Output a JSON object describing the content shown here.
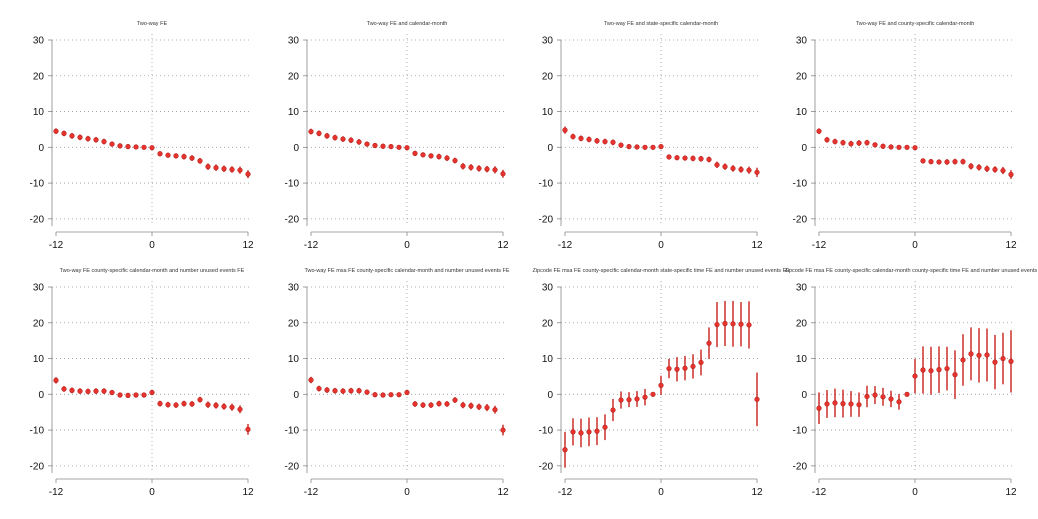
{
  "colors": {
    "marker": "#e8322d",
    "marker_edge": "#b0201c",
    "ci": "#c8201a",
    "grid": "#999999",
    "axis": "#888888"
  },
  "chart_data": [
    {
      "type": "scatter",
      "title": "Two-way FE",
      "x": [
        -12,
        -11,
        -10,
        -9,
        -8,
        -7,
        -6,
        -5,
        -4,
        -3,
        -2,
        -1,
        0,
        1,
        2,
        3,
        4,
        5,
        6,
        7,
        8,
        9,
        10,
        11,
        12
      ],
      "y": [
        4.5,
        3.9,
        3.2,
        2.8,
        2.4,
        2.1,
        1.6,
        0.9,
        0.4,
        0.2,
        0.1,
        0.0,
        -0.1,
        -1.8,
        -2.2,
        -2.4,
        -2.6,
        -3.0,
        -3.8,
        -5.4,
        -5.7,
        -6.0,
        -6.2,
        -6.4,
        -7.5
      ],
      "ci_low": [
        3.7,
        3.1,
        2.4,
        2.0,
        1.6,
        1.3,
        0.8,
        0.2,
        -0.3,
        -0.5,
        -0.5,
        -0.4,
        -0.5,
        -2.5,
        -2.9,
        -3.1,
        -3.4,
        -3.8,
        -4.6,
        -6.3,
        -6.6,
        -6.9,
        -7.1,
        -7.4,
        -8.6
      ],
      "ci_high": [
        5.3,
        4.7,
        4.0,
        3.6,
        3.2,
        2.9,
        2.4,
        1.6,
        1.1,
        0.9,
        0.7,
        0.4,
        0.3,
        -1.1,
        -1.5,
        -1.7,
        -1.8,
        -2.2,
        -3.0,
        -4.5,
        -4.8,
        -5.1,
        -5.3,
        -5.4,
        -6.4
      ],
      "xticks": [
        -12,
        0,
        12
      ],
      "yticks": [
        -20,
        -10,
        0,
        10,
        20,
        30
      ],
      "xlim": [
        -12.5,
        12.5
      ],
      "ylim": [
        -22,
        30
      ],
      "grid": "horizontal dotted",
      "legend": "none"
    },
    {
      "type": "scatter",
      "title": "Two-way FE and calendar-month",
      "x": [
        -12,
        -11,
        -10,
        -9,
        -8,
        -7,
        -6,
        -5,
        -4,
        -3,
        -2,
        -1,
        0,
        1,
        2,
        3,
        4,
        5,
        6,
        7,
        8,
        9,
        10,
        11,
        12
      ],
      "y": [
        4.4,
        3.9,
        3.2,
        2.7,
        2.3,
        2.0,
        1.5,
        0.9,
        0.5,
        0.3,
        0.2,
        0.0,
        -0.1,
        -1.7,
        -2.1,
        -2.4,
        -2.6,
        -3.0,
        -3.7,
        -5.3,
        -5.6,
        -5.9,
        -6.1,
        -6.3,
        -7.4
      ],
      "ci_low": [
        3.6,
        3.1,
        2.4,
        1.9,
        1.5,
        1.2,
        0.7,
        0.2,
        -0.2,
        -0.4,
        -0.4,
        -0.4,
        -0.5,
        -2.4,
        -2.8,
        -3.1,
        -3.4,
        -3.8,
        -4.5,
        -6.2,
        -6.5,
        -6.8,
        -7.0,
        -7.3,
        -8.5
      ],
      "ci_high": [
        5.2,
        4.7,
        4.0,
        3.5,
        3.1,
        2.8,
        2.3,
        1.6,
        1.2,
        1.0,
        0.8,
        0.4,
        0.3,
        -1.0,
        -1.4,
        -1.7,
        -1.8,
        -2.2,
        -2.9,
        -4.4,
        -4.7,
        -5.0,
        -5.2,
        -5.3,
        -6.3
      ],
      "xticks": [
        -12,
        0,
        12
      ],
      "yticks": [
        -20,
        -10,
        0,
        10,
        20,
        30
      ],
      "xlim": [
        -12.5,
        12.5
      ],
      "ylim": [
        -22,
        30
      ],
      "grid": "horizontal dotted",
      "legend": "none"
    },
    {
      "type": "scatter",
      "title": "Two-way FE and state-specific calendar-month",
      "x": [
        -12,
        -11,
        -10,
        -9,
        -8,
        -7,
        -6,
        -5,
        -4,
        -3,
        -2,
        -1,
        0,
        1,
        2,
        3,
        4,
        5,
        6,
        7,
        8,
        9,
        10,
        11,
        12
      ],
      "y": [
        4.8,
        3.0,
        2.5,
        2.2,
        1.8,
        1.6,
        1.4,
        0.6,
        0.2,
        0.1,
        0.0,
        0.0,
        0.2,
        -2.7,
        -2.9,
        -3.0,
        -3.1,
        -3.2,
        -3.4,
        -4.9,
        -5.4,
        -5.9,
        -6.2,
        -6.4,
        -7.0
      ],
      "ci_low": [
        3.8,
        2.2,
        1.7,
        1.4,
        1.0,
        0.8,
        0.6,
        -0.1,
        -0.5,
        -0.6,
        -0.6,
        -0.4,
        -0.2,
        -3.4,
        -3.6,
        -3.7,
        -3.9,
        -4.0,
        -4.2,
        -5.8,
        -6.3,
        -6.8,
        -7.1,
        -7.4,
        -8.3
      ],
      "ci_high": [
        5.8,
        3.8,
        3.3,
        3.0,
        2.6,
        2.4,
        2.2,
        1.3,
        0.9,
        0.8,
        0.6,
        0.4,
        0.6,
        -2.0,
        -2.2,
        -2.3,
        -2.3,
        -2.4,
        -2.6,
        -4.0,
        -4.5,
        -5.0,
        -5.3,
        -5.4,
        -5.7
      ],
      "xticks": [
        -12,
        0,
        12
      ],
      "yticks": [
        -20,
        -10,
        0,
        10,
        20,
        30
      ],
      "xlim": [
        -12.5,
        12.5
      ],
      "ylim": [
        -22,
        30
      ],
      "grid": "horizontal dotted",
      "legend": "none"
    },
    {
      "type": "scatter",
      "title": "Two-way FE and county-specific calendar-month",
      "x": [
        -12,
        -11,
        -10,
        -9,
        -8,
        -7,
        -6,
        -5,
        -4,
        -3,
        -2,
        -1,
        0,
        1,
        2,
        3,
        4,
        5,
        6,
        7,
        8,
        9,
        10,
        11,
        12
      ],
      "y": [
        4.5,
        2.1,
        1.6,
        1.3,
        1.0,
        1.2,
        1.3,
        0.7,
        0.3,
        0.1,
        0.0,
        0.0,
        -0.1,
        -3.8,
        -4.0,
        -4.1,
        -4.1,
        -4.0,
        -4.0,
        -5.3,
        -5.6,
        -6.0,
        -6.2,
        -6.5,
        -7.6
      ],
      "ci_low": [
        3.7,
        1.3,
        0.8,
        0.5,
        0.2,
        0.4,
        0.5,
        0.0,
        -0.4,
        -0.6,
        -0.6,
        -0.4,
        -0.5,
        -4.5,
        -4.7,
        -4.8,
        -4.9,
        -4.8,
        -4.8,
        -6.2,
        -6.5,
        -6.9,
        -7.1,
        -7.5,
        -8.8
      ],
      "ci_high": [
        5.3,
        2.9,
        2.4,
        2.1,
        1.8,
        2.0,
        2.1,
        1.4,
        1.0,
        0.8,
        0.6,
        0.4,
        0.3,
        -3.1,
        -3.3,
        -3.4,
        -3.3,
        -3.2,
        -3.2,
        -4.4,
        -4.7,
        -5.1,
        -5.3,
        -5.5,
        -6.4
      ],
      "xticks": [
        -12,
        0,
        12
      ],
      "yticks": [
        -20,
        -10,
        0,
        10,
        20,
        30
      ],
      "xlim": [
        -12.5,
        12.5
      ],
      "ylim": [
        -22,
        30
      ],
      "grid": "horizontal dotted",
      "legend": "none"
    },
    {
      "type": "scatter",
      "title": "Two-way FE county-specific calendar-month and number unused events FE",
      "x": [
        -12,
        -11,
        -10,
        -9,
        -8,
        -7,
        -6,
        -5,
        -4,
        -3,
        -2,
        -1,
        0,
        1,
        2,
        3,
        4,
        5,
        6,
        7,
        8,
        9,
        10,
        11,
        12
      ],
      "y": [
        3.9,
        1.5,
        1.1,
        0.9,
        0.8,
        0.9,
        0.9,
        0.5,
        -0.2,
        -0.3,
        -0.2,
        -0.2,
        0.5,
        -2.6,
        -2.9,
        -3.0,
        -2.6,
        -2.7,
        -1.5,
        -2.9,
        -3.1,
        -3.4,
        -3.6,
        -4.2,
        -9.8
      ],
      "ci_low": [
        3.0,
        0.7,
        0.3,
        0.1,
        0.0,
        0.1,
        0.1,
        -0.2,
        -0.9,
        -1.0,
        -0.8,
        -0.7,
        -0.1,
        -3.4,
        -3.7,
        -3.8,
        -3.4,
        -3.5,
        -2.3,
        -3.8,
        -4.0,
        -4.3,
        -4.6,
        -5.3,
        -11.3
      ],
      "ci_high": [
        4.8,
        2.3,
        1.9,
        1.7,
        1.6,
        1.7,
        1.7,
        1.2,
        0.5,
        0.4,
        0.4,
        0.3,
        1.1,
        -1.8,
        -2.1,
        -2.2,
        -1.8,
        -1.9,
        -0.7,
        -2.0,
        -2.2,
        -2.5,
        -2.6,
        -3.1,
        -8.3
      ],
      "xticks": [
        -12,
        0,
        12
      ],
      "yticks": [
        -20,
        -10,
        0,
        10,
        20,
        30
      ],
      "xlim": [
        -12.5,
        12.5
      ],
      "ylim": [
        -22,
        30
      ],
      "grid": "horizontal dotted",
      "legend": "none"
    },
    {
      "type": "scatter",
      "title": "Two-way FE msa FE county-specific calendar-month and number unused events FE",
      "x": [
        -12,
        -11,
        -10,
        -9,
        -8,
        -7,
        -6,
        -5,
        -4,
        -3,
        -2,
        -1,
        0,
        1,
        2,
        3,
        4,
        5,
        6,
        7,
        8,
        9,
        10,
        11,
        12
      ],
      "y": [
        4.0,
        1.6,
        1.2,
        1.0,
        0.9,
        1.0,
        1.0,
        0.6,
        -0.1,
        -0.2,
        -0.1,
        -0.1,
        0.5,
        -2.7,
        -3.0,
        -3.0,
        -2.6,
        -2.7,
        -1.6,
        -3.0,
        -3.2,
        -3.5,
        -3.7,
        -4.3,
        -10.0
      ],
      "ci_low": [
        3.1,
        0.8,
        0.4,
        0.2,
        0.1,
        0.2,
        0.2,
        -0.1,
        -0.8,
        -0.9,
        -0.7,
        -0.6,
        -0.1,
        -3.5,
        -3.8,
        -3.8,
        -3.4,
        -3.5,
        -2.4,
        -3.9,
        -4.1,
        -4.4,
        -4.7,
        -5.4,
        -11.5
      ],
      "ci_high": [
        4.9,
        2.4,
        2.0,
        1.8,
        1.7,
        1.8,
        1.8,
        1.3,
        0.6,
        0.5,
        0.5,
        0.4,
        1.1,
        -1.9,
        -2.2,
        -2.2,
        -1.8,
        -1.9,
        -0.8,
        -2.1,
        -2.3,
        -2.6,
        -2.7,
        -3.2,
        -8.5
      ],
      "xticks": [
        -12,
        0,
        12
      ],
      "yticks": [
        -20,
        -10,
        0,
        10,
        20,
        30
      ],
      "xlim": [
        -12.5,
        12.5
      ],
      "ylim": [
        -22,
        30
      ],
      "grid": "horizontal dotted",
      "legend": "none"
    },
    {
      "type": "scatter",
      "title": "Zipcode FE msa FE county-specific calendar-month state-specific time FE and number unused events FE",
      "x": [
        -12,
        -11,
        -10,
        -9,
        -8,
        -7,
        -6,
        -5,
        -4,
        -3,
        -2,
        -1,
        0,
        1,
        2,
        3,
        4,
        5,
        6,
        7,
        8,
        9,
        10,
        11,
        12
      ],
      "y": [
        -15.5,
        -10.5,
        -10.8,
        -10.5,
        -10.3,
        -9.2,
        -4.4,
        -1.6,
        -1.5,
        -1.3,
        -0.8,
        0.0,
        2.5,
        7.2,
        7.0,
        7.3,
        7.8,
        8.9,
        14.3,
        19.5,
        19.8,
        19.7,
        19.6,
        19.4,
        -1.4
      ],
      "ci_low": [
        -20.5,
        -14.3,
        -14.8,
        -14.5,
        -14.2,
        -12.8,
        -7.5,
        -4.0,
        -3.6,
        -3.5,
        -3.1,
        0.0,
        -0.2,
        4.5,
        3.6,
        3.9,
        4.4,
        5.3,
        9.9,
        13.2,
        13.5,
        13.3,
        13.4,
        12.8,
        -8.9
      ],
      "ci_high": [
        -10.5,
        -6.7,
        -6.8,
        -6.5,
        -6.4,
        -5.6,
        -1.3,
        0.8,
        0.6,
        0.9,
        1.5,
        0.0,
        5.2,
        9.9,
        10.4,
        10.7,
        11.2,
        12.5,
        18.7,
        25.8,
        26.1,
        26.1,
        25.8,
        26.0,
        6.1
      ],
      "xticks": [
        -12,
        0,
        12
      ],
      "yticks": [
        -20,
        -10,
        0,
        10,
        20,
        30
      ],
      "xlim": [
        -12.5,
        12.5
      ],
      "ylim": [
        -22,
        30
      ],
      "grid": "horizontal dotted",
      "legend": "none"
    },
    {
      "type": "scatter",
      "title": "Zipcode FE msa FE county-specific calendar-month county-specific time FE and number unused events FE",
      "x": [
        -12,
        -11,
        -10,
        -9,
        -8,
        -7,
        -6,
        -5,
        -4,
        -3,
        -2,
        -1,
        0,
        1,
        2,
        3,
        4,
        5,
        6,
        7,
        8,
        9,
        10,
        11,
        12
      ],
      "y": [
        -3.9,
        -2.7,
        -2.4,
        -2.6,
        -2.7,
        -2.9,
        -0.6,
        -0.2,
        -0.7,
        -1.3,
        -2.1,
        0.0,
        5.1,
        6.8,
        6.6,
        6.9,
        7.2,
        5.5,
        9.6,
        11.3,
        10.9,
        11.0,
        9.0,
        10.0,
        9.2
      ],
      "ci_low": [
        -8.3,
        -6.6,
        -6.4,
        -6.5,
        -6.3,
        -6.3,
        -3.6,
        -2.7,
        -3.2,
        -3.6,
        -4.3,
        0.0,
        0.3,
        0.2,
        -0.1,
        0.4,
        1.1,
        -1.3,
        2.4,
        3.9,
        3.3,
        3.6,
        1.4,
        2.8,
        0.5
      ],
      "ci_high": [
        0.5,
        1.2,
        1.6,
        1.3,
        0.9,
        0.5,
        2.4,
        2.3,
        1.8,
        1.0,
        0.1,
        0.0,
        9.9,
        13.4,
        13.3,
        13.4,
        13.3,
        12.3,
        16.8,
        18.7,
        18.5,
        18.4,
        16.6,
        17.2,
        17.9
      ],
      "xticks": [
        -12,
        0,
        12
      ],
      "yticks": [
        -20,
        -10,
        0,
        10,
        20,
        30
      ],
      "xlim": [
        -12.5,
        12.5
      ],
      "ylim": [
        -22,
        30
      ],
      "grid": "horizontal dotted",
      "legend": "none"
    }
  ]
}
